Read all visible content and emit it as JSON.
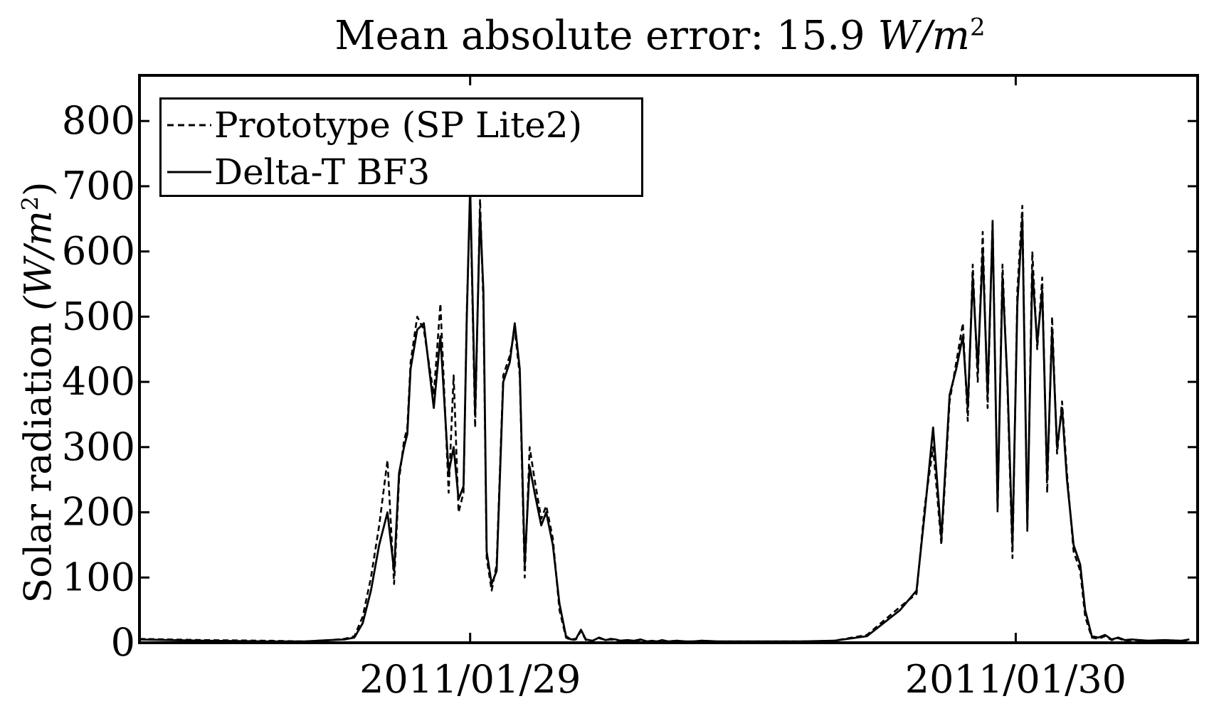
{
  "chart_data": {
    "type": "line",
    "title_prefix": "Mean absolute error: 15.9",
    "title_unit": "W/m",
    "title_unit_exp": "2",
    "ylabel_prefix": "Solar radiation",
    "ylabel_unit": "(W/m",
    "ylabel_unit_exp": "2",
    "ylabel_close": ")",
    "xlabel": "",
    "x_unit": "hours since 2011/01/29 00:00",
    "xlim": [
      -20,
      44
    ],
    "ylim": [
      0,
      870
    ],
    "yticks": [
      0,
      100,
      200,
      300,
      400,
      500,
      600,
      700,
      800
    ],
    "xticks": [
      {
        "x": 0,
        "label": "2011/01/29"
      },
      {
        "x": 33,
        "label": "2011/01/30"
      }
    ],
    "legend": {
      "position": "top-left",
      "entries": [
        {
          "name": "Prototype (SP Lite2)",
          "style": "dashed"
        },
        {
          "name": "Delta-T BF3",
          "style": "solid"
        }
      ]
    },
    "grid": false,
    "series": [
      {
        "name": "Delta-T BF3",
        "style": "solid",
        "x": [
          -20,
          -16,
          -12,
          -10,
          -8.5,
          -7.6,
          -7,
          -6.5,
          -6,
          -5.5,
          -5,
          -4.6,
          -4.3,
          -4,
          -3.8,
          -3.6,
          -3.2,
          -2.8,
          -2.2,
          -1.8,
          -1.3,
          -1.0,
          -0.7,
          -0.4,
          -0.2,
          0,
          0.3,
          0.6,
          0.8,
          1.0,
          1.3,
          1.6,
          2.0,
          2.4,
          2.7,
          3.0,
          3.3,
          3.6,
          3.9,
          4.3,
          4.6,
          5.0,
          5.4,
          5.8,
          6.1,
          6.4,
          6.7,
          7.0,
          7.4,
          7.8,
          8.2,
          8.5,
          8.8,
          9.1,
          9.5,
          9.9,
          10.3,
          10.7,
          11.0,
          11.3,
          11.6,
          12.0,
          12.5,
          13.0,
          13.5,
          14,
          15,
          16,
          18,
          20,
          22,
          24,
          26,
          27,
          27.5,
          28,
          28.5,
          29,
          29.4,
          29.8,
          30.1,
          30.4,
          30.7,
          31,
          31.3,
          31.6,
          31.9,
          32.2,
          32.5,
          32.8,
          33.1,
          33.4,
          33.7,
          34.0,
          34.3,
          34.6,
          34.9,
          35.2,
          35.5,
          35.8,
          36.1,
          36.5,
          36.9,
          37.2,
          37.6,
          38.0,
          38.4,
          38.8,
          39.2,
          39.6,
          40,
          41,
          42,
          43,
          43.5
        ],
        "y": [
          5,
          3,
          2,
          2,
          4,
          5,
          8,
          30,
          80,
          150,
          200,
          110,
          260,
          300,
          320,
          420,
          480,
          490,
          360,
          470,
          260,
          300,
          220,
          240,
          500,
          700,
          350,
          660,
          540,
          140,
          90,
          110,
          400,
          430,
          490,
          420,
          120,
          270,
          230,
          180,
          200,
          150,
          60,
          10,
          5,
          6,
          20,
          5,
          3,
          8,
          4,
          6,
          5,
          3,
          4,
          3,
          5,
          2,
          3,
          2,
          4,
          2,
          3,
          2,
          2,
          3,
          2,
          2,
          2,
          2,
          3,
          10,
          50,
          80,
          200,
          330,
          160,
          380,
          420,
          470,
          360,
          560,
          420,
          600,
          380,
          640,
          210,
          560,
          400,
          150,
          520,
          650,
          180,
          570,
          460,
          540,
          250,
          480,
          300,
          360,
          250,
          150,
          120,
          50,
          10,
          8,
          12,
          5,
          8,
          4,
          5,
          3,
          4,
          3,
          5
        ]
      },
      {
        "name": "Prototype (SP Lite2)",
        "style": "dashed",
        "x": [
          -20,
          -16,
          -12,
          -10,
          -8.5,
          -7.6,
          -7,
          -6.5,
          -6,
          -5.5,
          -5,
          -4.6,
          -4.3,
          -4,
          -3.8,
          -3.6,
          -3.2,
          -2.8,
          -2.2,
          -1.8,
          -1.3,
          -1.0,
          -0.7,
          -0.4,
          -0.2,
          0,
          0.3,
          0.6,
          0.8,
          1.0,
          1.3,
          1.6,
          2.0,
          2.4,
          2.7,
          3.0,
          3.3,
          3.6,
          3.9,
          4.3,
          4.6,
          5.0,
          5.4,
          5.8,
          6.1,
          6.4,
          6.7,
          7.0,
          7.4,
          7.8,
          8.2,
          8.5,
          8.8,
          9.1,
          9.5,
          9.9,
          10.3,
          10.7,
          11.0,
          11.3,
          11.6,
          12.0,
          12.5,
          13.0,
          13.5,
          14,
          15,
          16,
          18,
          20,
          22,
          24,
          26,
          27,
          27.5,
          28,
          28.5,
          29,
          29.4,
          29.8,
          30.1,
          30.4,
          30.7,
          31,
          31.3,
          31.6,
          31.9,
          32.2,
          32.5,
          32.8,
          33.1,
          33.4,
          33.7,
          34.0,
          34.3,
          34.6,
          34.9,
          35.2,
          35.5,
          35.8,
          36.1,
          36.5,
          36.9,
          37.2,
          37.6,
          38.0,
          38.4,
          38.8,
          39.2,
          39.6,
          40,
          41,
          42,
          43,
          43.5
        ],
        "y": [
          6,
          4,
          3,
          2,
          4,
          6,
          10,
          40,
          100,
          180,
          280,
          90,
          250,
          310,
          330,
          430,
          500,
          480,
          380,
          520,
          230,
          410,
          200,
          230,
          510,
          690,
          330,
          680,
          520,
          130,
          80,
          120,
          410,
          440,
          480,
          410,
          100,
          300,
          250,
          190,
          210,
          160,
          50,
          8,
          4,
          5,
          18,
          4,
          3,
          7,
          4,
          5,
          4,
          3,
          4,
          3,
          4,
          2,
          3,
          2,
          3,
          2,
          3,
          2,
          2,
          3,
          2,
          2,
          2,
          2,
          3,
          12,
          55,
          75,
          210,
          300,
          150,
          370,
          430,
          490,
          340,
          580,
          400,
          630,
          360,
          650,
          200,
          580,
          390,
          130,
          540,
          670,
          170,
          600,
          450,
          560,
          230,
          500,
          290,
          370,
          260,
          140,
          110,
          40,
          8,
          6,
          10,
          4,
          7,
          3,
          4,
          3,
          4,
          3,
          4
        ]
      }
    ]
  }
}
